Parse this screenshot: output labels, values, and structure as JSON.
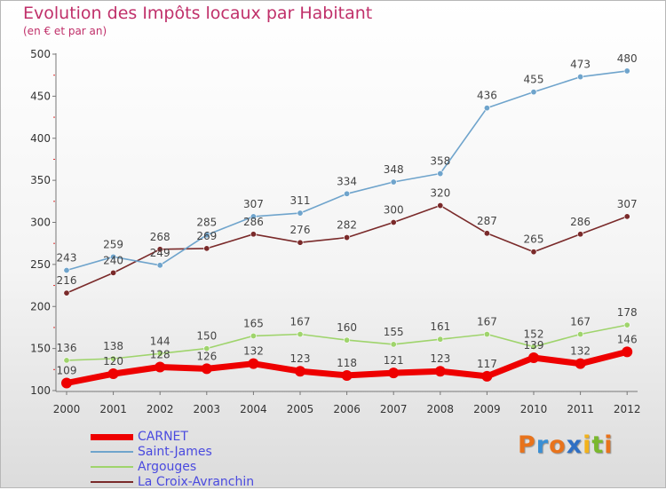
{
  "header": {
    "title": "Evolution des Impôts locaux par Habitant",
    "subtitle": "(en € et par an)"
  },
  "logo": {
    "letters": [
      "P",
      "r",
      "o",
      "x",
      "i",
      "t",
      "i"
    ],
    "colors": [
      "#e8731c",
      "#3b8fd4",
      "#e8731c",
      "#2f6fc4",
      "#f2b21c",
      "#7ab82e",
      "#e8731c"
    ]
  },
  "chart_data": {
    "type": "line",
    "title": "Evolution des Impôts locaux par Habitant",
    "subtitle": "(en € et par an)",
    "xlabel": "",
    "ylabel": "",
    "x": [
      "2000",
      "2001",
      "2002",
      "2003",
      "2004",
      "2005",
      "2006",
      "2007",
      "2008",
      "2009",
      "2010",
      "2011",
      "2012"
    ],
    "ylim": [
      100,
      500
    ],
    "yticks": [
      100,
      150,
      200,
      250,
      300,
      350,
      400,
      450,
      500
    ],
    "grid": false,
    "legend_position": "bottom-left",
    "series": [
      {
        "name": "CARNET",
        "color": "#ee0000",
        "values": [
          109,
          120,
          128,
          126,
          132,
          123,
          118,
          121,
          123,
          117,
          139,
          132,
          146
        ]
      },
      {
        "name": "Saint-James",
        "color": "#6fa4cc",
        "values": [
          243,
          259,
          249,
          285,
          307,
          311,
          334,
          348,
          358,
          436,
          455,
          473,
          480
        ]
      },
      {
        "name": "Argouges",
        "color": "#9fd46c",
        "values": [
          136,
          138,
          144,
          150,
          165,
          167,
          160,
          155,
          161,
          167,
          152,
          167,
          178
        ]
      },
      {
        "name": "La Croix-Avranchin",
        "color": "#7a2a2a",
        "values": [
          216,
          240,
          268,
          269,
          286,
          276,
          282,
          300,
          320,
          287,
          265,
          286,
          307
        ]
      }
    ]
  }
}
